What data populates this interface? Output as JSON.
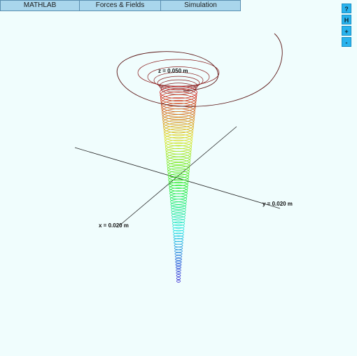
{
  "menu": {
    "tabs": [
      {
        "label": "MATHLAB"
      },
      {
        "label": "Forces & Fields"
      },
      {
        "label": "Simulation"
      }
    ]
  },
  "side_buttons": [
    {
      "label": "?"
    },
    {
      "label": "H"
    },
    {
      "label": "+"
    },
    {
      "label": "-"
    }
  ],
  "plot": {
    "axis_labels": {
      "x": "x = 0.020 m",
      "y": "y = 0.020 m",
      "z": "z = 0.050 m"
    },
    "colors": {
      "background": "#f0fdfd",
      "axes": "#222222",
      "outer_path": "#5a1414",
      "menu": "#a9d6ec",
      "buttons": "#29b3ee"
    }
  }
}
